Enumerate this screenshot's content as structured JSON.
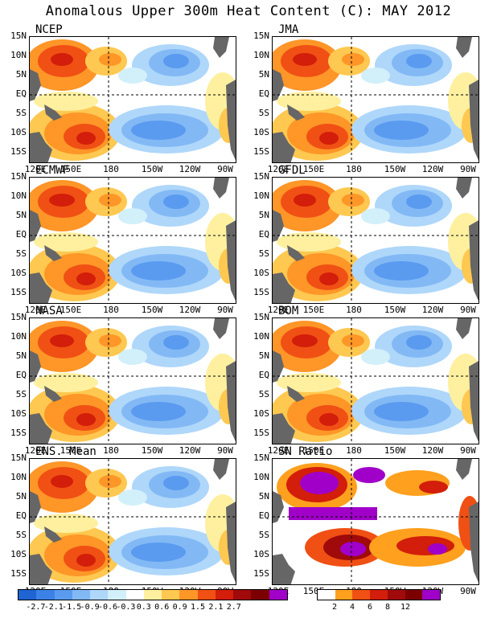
{
  "title": "Anomalous Upper 300m Heat Content (C): MAY 2012",
  "lat_labels": [
    "15N",
    "10N",
    "5N",
    "EQ",
    "5S",
    "10S",
    "15S"
  ],
  "lon_labels": [
    "120E",
    "150E",
    "180",
    "150W",
    "120W",
    "90W"
  ],
  "panels": [
    {
      "name": "NCEP",
      "kind": "anom"
    },
    {
      "name": "JMA",
      "kind": "anom"
    },
    {
      "name": "ECMWF",
      "kind": "anom"
    },
    {
      "name": "GFDL",
      "kind": "anom"
    },
    {
      "name": "NASA",
      "kind": "anom"
    },
    {
      "name": "BOM",
      "kind": "anom"
    },
    {
      "name": "ENS. Mean",
      "kind": "anom"
    },
    {
      "name": "SN Ratio",
      "kind": "snr"
    }
  ],
  "anom_colorbar": {
    "colors": [
      "#1e64d2",
      "#3c82e6",
      "#5a9bf0",
      "#82b9f5",
      "#afd7fa",
      "#d2f0fa",
      "#ffffff",
      "#fff0a0",
      "#ffc850",
      "#ff9628",
      "#f05014",
      "#d21e0a",
      "#a00a0a",
      "#7d0000",
      "#a000c8"
    ],
    "labels": [
      "-2.7",
      "-2.1",
      "-1.5",
      "-0.9",
      "-0.6",
      "-0.3",
      "0.3",
      "0.6",
      "0.9",
      "1.5",
      "2.1",
      "2.7"
    ]
  },
  "snr_colorbar": {
    "colors": [
      "#ffffff",
      "#ffa01e",
      "#f05014",
      "#d21e0a",
      "#a00a0a",
      "#7d0000",
      "#a000c8"
    ],
    "labels": [
      "2",
      "4",
      "6",
      "8",
      "12"
    ]
  },
  "land_color": "#666666"
}
